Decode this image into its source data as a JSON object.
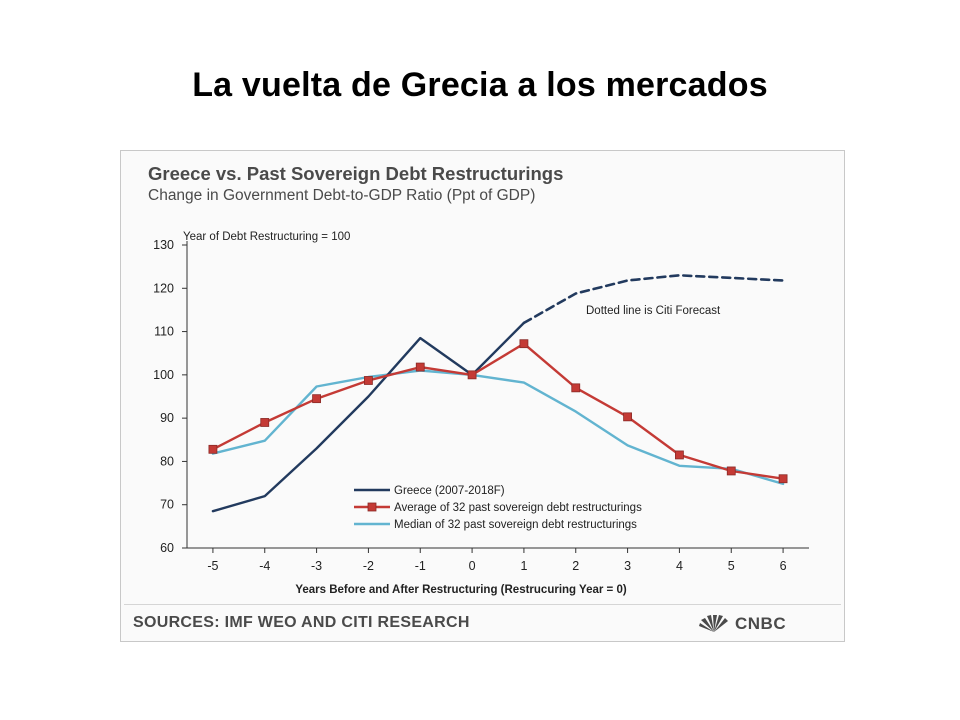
{
  "slide_title": "La vuelta de Grecia a los mercados",
  "footer": {
    "sources": "SOURCES: IMF WEO AND CITI RESEARCH",
    "logo_text": "CNBC"
  },
  "chart_data": {
    "type": "line",
    "title": "Greece vs. Past Sovereign Debt Restructurings",
    "subtitle": "Change in Government Debt-to-GDP Ratio (Ppt of GDP)",
    "xlabel": "Years Before and After Restructuring (Restrucuring Year = 0)",
    "ylabel": "",
    "y_annotation": "Year of Debt Restructuring = 100",
    "forecast_annotation": "Dotted line is Citi Forecast",
    "x": [
      -5,
      -4,
      -3,
      -2,
      -1,
      0,
      1,
      2,
      3,
      4,
      5,
      6
    ],
    "x_tick_labels": [
      "-5",
      "-4",
      "-3",
      "-2",
      "-1",
      "0",
      "1",
      "2",
      "3",
      "4",
      "5",
      "6"
    ],
    "ylim": [
      60,
      130
    ],
    "y_ticks": [
      60,
      70,
      80,
      90,
      100,
      110,
      120,
      130
    ],
    "grid": false,
    "legend_position": "bottom-center",
    "series": [
      {
        "name": "Greece (2007-2018F)",
        "color": "#223a5e",
        "style": "solid",
        "markers": false,
        "x": [
          -5,
          -4,
          -3,
          -2,
          -1,
          0,
          1
        ],
        "values": [
          68.5,
          72,
          83,
          95,
          108.5,
          100,
          112
        ]
      },
      {
        "name": "",
        "color": "#223a5e",
        "style": "dashed",
        "markers": false,
        "x": [
          1,
          2,
          3,
          4,
          5,
          6
        ],
        "values": [
          112,
          118.8,
          121.8,
          123,
          122.4,
          121.8
        ]
      },
      {
        "name": "Average of 32 past sovereign debt restructurings",
        "color": "#c43a35",
        "style": "solid",
        "markers": true,
        "x": [
          -5,
          -4,
          -3,
          -2,
          -1,
          0,
          1,
          2,
          3,
          4,
          5,
          6
        ],
        "values": [
          82.8,
          89,
          94.5,
          98.7,
          101.8,
          100,
          107.2,
          97,
          90.3,
          81.5,
          77.8,
          76
        ]
      },
      {
        "name": "Median of 32 past sovereign debt restructurings",
        "color": "#62b4d0",
        "style": "solid",
        "markers": false,
        "x": [
          -5,
          -4,
          -3,
          -2,
          -1,
          0,
          1,
          2,
          3,
          4,
          5,
          6
        ],
        "values": [
          81.8,
          84.8,
          97.3,
          99.5,
          101,
          100,
          98.2,
          91.5,
          83.7,
          79,
          78.3,
          74.8
        ]
      }
    ]
  }
}
